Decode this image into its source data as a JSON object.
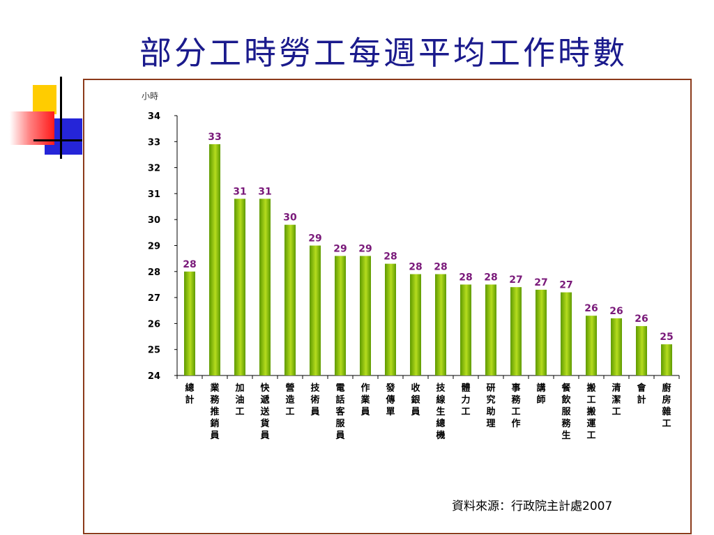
{
  "slide": {
    "title": "部分工時勞工每週平均工作時數",
    "source": "資料來源：行政院主計處2007"
  },
  "chart_data": {
    "type": "bar",
    "ylabel": "小時",
    "ylim": [
      24,
      34
    ],
    "yticks": [
      24,
      25,
      26,
      27,
      28,
      29,
      30,
      31,
      32,
      33,
      34
    ],
    "categories": [
      "總計",
      "業務推銷員",
      "加油工",
      "快遞送貨員",
      "營造工",
      "技術員",
      "電話客服員",
      "作業員",
      "發傳單",
      "收銀員",
      "技線生總機",
      "體力工",
      "研究助理",
      "事務工作",
      "講師",
      "餐飲服務生",
      "搬工搬運工",
      "清潔工",
      "會計",
      "廚房雜工"
    ],
    "values": [
      28.0,
      32.9,
      30.8,
      30.8,
      29.8,
      29.0,
      28.6,
      28.6,
      28.3,
      27.9,
      27.9,
      27.5,
      27.5,
      27.4,
      27.3,
      27.2,
      26.3,
      26.2,
      25.9,
      25.2
    ],
    "data_labels": [
      "28",
      "33",
      "31",
      "31",
      "30",
      "29",
      "29",
      "29",
      "28",
      "28",
      "28",
      "28",
      "28",
      "27",
      "27",
      "27",
      "26",
      "26",
      "26",
      "25"
    ],
    "colors": {
      "bar_top": "#b5dc1e",
      "bar_bottom": "#5e9a00",
      "label": "#7a1a7a"
    }
  }
}
